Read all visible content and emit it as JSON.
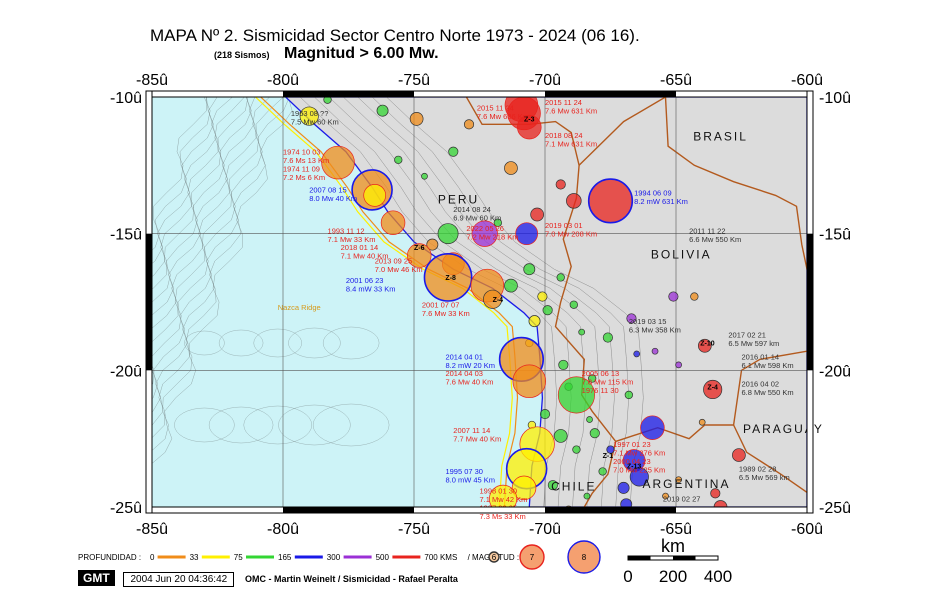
{
  "title": "MAPA Nº 2. Sismicidad Sector Centro Norte 1973 - 2024 (06 16).",
  "count_label": "(218 Sismos)",
  "magnitude_label": "Magnitud > 6.00 Mw.",
  "lon_ticks": [
    "-85û",
    "-80û",
    "-75û",
    "-70û",
    "-65û",
    "-60û"
  ],
  "lat_ticks": [
    "-10û",
    "-15û",
    "-20û",
    "-25û"
  ],
  "countries": [
    {
      "name": "BRASIL",
      "lon": -63.3,
      "lat": -11.6
    },
    {
      "name": "PERU",
      "lon": -73.3,
      "lat": -13.9
    },
    {
      "name": "BOLIVIA",
      "lon": -64.8,
      "lat": -15.9
    },
    {
      "name": "PARAGUAY",
      "lon": -60.9,
      "lat": -22.3
    },
    {
      "name": "CHILE",
      "lon": -68.9,
      "lat": -24.4
    },
    {
      "name": "ARGENTINA",
      "lon": -64.6,
      "lat": -24.3
    }
  ],
  "event_labels": [
    {
      "lines": [
        "2015 11 24",
        "7.6 Mw 636 Km"
      ],
      "lon": -72.6,
      "lat": -10.5,
      "color": "#e8231e"
    },
    {
      "lines": [
        "2015 11 24",
        "7.6 Mw 631 Km"
      ],
      "lon": -70.0,
      "lat": -10.3,
      "color": "#e8231e"
    },
    {
      "lines": [
        "2018 08 24",
        "7.1 Mw 631 Km"
      ],
      "lon": -70.0,
      "lat": -11.5,
      "color": "#e8231e"
    },
    {
      "lines": [
        "1963 08 ??",
        "7.5 Mw 60 Km"
      ],
      "lon": -79.7,
      "lat": -10.7,
      "color": "#333333"
    },
    {
      "lines": [
        "1974 10 03",
        "7.6 Ms 13 Km",
        "1974 11 09",
        "7.2 Ms 6 Km"
      ],
      "lon": -80.0,
      "lat": -12.1,
      "color": "#e8231e"
    },
    {
      "lines": [
        "2007 08 15",
        "8.0 Mw 40 Km"
      ],
      "lon": -79.0,
      "lat": -13.5,
      "color": "#1a1ae8"
    },
    {
      "lines": [
        "1994 06 09",
        "8.2 mW 631 Km"
      ],
      "lon": -66.6,
      "lat": -13.6,
      "color": "#1a1ae8"
    },
    {
      "lines": [
        "2014 08 24",
        "6.9 Mw 60 Km"
      ],
      "lon": -73.5,
      "lat": -14.2,
      "color": "#333333"
    },
    {
      "lines": [
        "2022 05 26",
        "7.2 Mw 218 Km"
      ],
      "lon": -73.0,
      "lat": -14.9,
      "color": "#e8231e"
    },
    {
      "lines": [
        "2019 03 01",
        "7.0 Mw 208 Km"
      ],
      "lon": -70.0,
      "lat": -14.8,
      "color": "#e8231e"
    },
    {
      "lines": [
        "2011 11 22",
        "6.6 Mw 550 Km"
      ],
      "lon": -64.5,
      "lat": -15.0,
      "color": "#333333"
    },
    {
      "lines": [
        "1993 11 12",
        "7.1 Mw 33 Km"
      ],
      "lon": -78.3,
      "lat": -15.0,
      "color": "#e8231e"
    },
    {
      "lines": [
        "2018 01 14",
        "7.1 Mw 40 Km"
      ],
      "lon": -77.8,
      "lat": -15.6,
      "color": "#e8231e"
    },
    {
      "lines": [
        "2013 09 25",
        "7.0 Mw 46 Km"
      ],
      "lon": -76.5,
      "lat": -16.1,
      "color": "#e8231e"
    },
    {
      "lines": [
        "2001 06 23",
        "8.4 mW 33 Km"
      ],
      "lon": -77.6,
      "lat": -16.8,
      "color": "#1a1ae8"
    },
    {
      "lines": [
        "2001 07 07",
        "7.6 Mw 33 Km"
      ],
      "lon": -74.7,
      "lat": -17.7,
      "color": "#e8231e"
    },
    {
      "lines": [
        "2019 03 15",
        "6.3 Mw 358 Km"
      ],
      "lon": -66.8,
      "lat": -18.3,
      "color": "#333333"
    },
    {
      "lines": [
        "2014 04 01",
        "8.2 mW 20 Km"
      ],
      "lon": -73.8,
      "lat": -19.6,
      "color": "#1a1ae8"
    },
    {
      "lines": [
        "2014 04 03",
        "7.6 Mw 40 Km"
      ],
      "lon": -73.8,
      "lat": -20.2,
      "color": "#e8231e"
    },
    {
      "lines": [
        "2005 06 13",
        "7.8 Mw 115 Km",
        "1976 11 30"
      ],
      "lon": -68.6,
      "lat": -20.2,
      "color": "#e8231e"
    },
    {
      "lines": [
        "2017 02 21",
        "6.5 Mw 597 km"
      ],
      "lon": -63.0,
      "lat": -18.8,
      "color": "#333333"
    },
    {
      "lines": [
        "2016 01 14",
        "6.1 Mw 598 Km"
      ],
      "lon": -62.5,
      "lat": -19.6,
      "color": "#333333"
    },
    {
      "lines": [
        "2016 04 02",
        "6.8 Mw 550 Km"
      ],
      "lon": -62.5,
      "lat": -20.6,
      "color": "#333333"
    },
    {
      "lines": [
        "2007 11 14",
        "7.7 Mw 40 Km"
      ],
      "lon": -73.5,
      "lat": -22.3,
      "color": "#e8231e"
    },
    {
      "lines": [
        "1995 07 30",
        "8.0 mW 45 Km"
      ],
      "lon": -73.8,
      "lat": -23.8,
      "color": "#1a1ae8"
    },
    {
      "lines": [
        "1998 01 30",
        "7.1 Mw 42 Km",
        "1987 03 05",
        "7.3 Ms 33 Km"
      ],
      "lon": -72.5,
      "lat": -24.5,
      "color": "#e8231e"
    },
    {
      "lines": [
        "1989 02 28",
        "6.5 Mw 569 km"
      ],
      "lon": -62.6,
      "lat": -23.7,
      "color": "#333333"
    },
    {
      "lines": [
        "1997 01 23",
        "7.1 Mw 276 Km",
        "2000 04 23",
        "7.0 Mw 225 Km"
      ],
      "lon": -67.4,
      "lat": -22.8,
      "color": "#e8231e"
    },
    {
      "lines": [
        "2019 02 27"
      ],
      "lon": -65.5,
      "lat": -24.8,
      "color": "#333333"
    },
    {
      "lines": [
        "Nazca Ridge"
      ],
      "lon": -80.2,
      "lat": -17.8,
      "color": "#d69a1a"
    }
  ],
  "events": [
    {
      "lon": -70.9,
      "lat": -10.3,
      "mag": 7.6,
      "color": "#e8231e"
    },
    {
      "lon": -70.8,
      "lat": -10.6,
      "mag": 7.6,
      "color": "#e8231e"
    },
    {
      "lon": -70.6,
      "lat": -11.1,
      "mag": 7.1,
      "color": "#e8231e"
    },
    {
      "lon": -77.9,
      "lat": -12.4,
      "mag": 7.6,
      "color": "#f08c1a"
    },
    {
      "lon": -76.6,
      "lat": -13.4,
      "mag": 8.0,
      "color": "#f08c1a"
    },
    {
      "lon": -76.5,
      "lat": -13.6,
      "mag": 7.0,
      "color": "#fff000"
    },
    {
      "lon": -67.5,
      "lat": -13.8,
      "mag": 8.2,
      "color": "#e8231e"
    },
    {
      "lon": -79.0,
      "lat": -10.7,
      "mag": 6.8,
      "color": "#fff000"
    },
    {
      "lon": -78.3,
      "lat": -10.1,
      "mag": 6.2,
      "color": "#33d633"
    },
    {
      "lon": -76.2,
      "lat": -10.5,
      "mag": 6.4,
      "color": "#33d633"
    },
    {
      "lon": -74.9,
      "lat": -10.8,
      "mag": 6.5,
      "color": "#f08c1a"
    },
    {
      "lon": -72.9,
      "lat": -11.0,
      "mag": 6.3,
      "color": "#f08c1a"
    },
    {
      "lon": -73.5,
      "lat": -12.0,
      "mag": 6.3,
      "color": "#33d633"
    },
    {
      "lon": -75.6,
      "lat": -12.3,
      "mag": 6.2,
      "color": "#33d633"
    },
    {
      "lon": -74.6,
      "lat": -12.9,
      "mag": 6.1,
      "color": "#33d633"
    },
    {
      "lon": -71.3,
      "lat": -12.6,
      "mag": 6.5,
      "color": "#f08c1a"
    },
    {
      "lon": -69.4,
      "lat": -13.2,
      "mag": 6.3,
      "color": "#e8231e"
    },
    {
      "lon": -68.9,
      "lat": -13.8,
      "mag": 6.6,
      "color": "#e8231e"
    },
    {
      "lon": -70.3,
      "lat": -14.3,
      "mag": 6.5,
      "color": "#e8231e"
    },
    {
      "lon": -71.8,
      "lat": -14.6,
      "mag": 6.2,
      "color": "#33d633"
    },
    {
      "lon": -73.7,
      "lat": -15.0,
      "mag": 6.9,
      "color": "#33d633"
    },
    {
      "lon": -72.3,
      "lat": -15.0,
      "mag": 7.2,
      "color": "#9b30d6"
    },
    {
      "lon": -70.7,
      "lat": -15.0,
      "mag": 7.0,
      "color": "#1a1ae8"
    },
    {
      "lon": -75.8,
      "lat": -14.6,
      "mag": 7.1,
      "color": "#f08c1a"
    },
    {
      "lon": -74.3,
      "lat": -15.4,
      "mag": 6.4,
      "color": "#f08c1a"
    },
    {
      "lon": -74.8,
      "lat": -15.8,
      "mag": 7.1,
      "color": "#f08c1a"
    },
    {
      "lon": -73.5,
      "lat": -16.1,
      "mag": 7.0,
      "color": "#f08c1a"
    },
    {
      "lon": -73.7,
      "lat": -16.6,
      "mag": 8.4,
      "color": "#f08c1a"
    },
    {
      "lon": -72.2,
      "lat": -16.9,
      "mag": 7.6,
      "color": "#f08c1a"
    },
    {
      "lon": -72.0,
      "lat": -17.4,
      "mag": 6.8,
      "color": "#f08c1a"
    },
    {
      "lon": -71.3,
      "lat": -16.9,
      "mag": 6.5,
      "color": "#33d633"
    },
    {
      "lon": -70.6,
      "lat": -16.3,
      "mag": 6.4,
      "color": "#33d633"
    },
    {
      "lon": -70.1,
      "lat": -17.3,
      "mag": 6.3,
      "color": "#fff000"
    },
    {
      "lon": -69.4,
      "lat": -16.6,
      "mag": 6.2,
      "color": "#33d633"
    },
    {
      "lon": -69.9,
      "lat": -17.8,
      "mag": 6.3,
      "color": "#33d633"
    },
    {
      "lon": -68.9,
      "lat": -17.6,
      "mag": 6.2,
      "color": "#33d633"
    },
    {
      "lon": -64.3,
      "lat": -17.3,
      "mag": 6.2,
      "color": "#f08c1a"
    },
    {
      "lon": -65.1,
      "lat": -17.3,
      "mag": 6.3,
      "color": "#9b30d6"
    },
    {
      "lon": -66.7,
      "lat": -18.1,
      "mag": 6.3,
      "color": "#9b30d6"
    },
    {
      "lon": -66.5,
      "lat": -19.4,
      "mag": 6.0,
      "color": "#1a1ae8"
    },
    {
      "lon": -65.8,
      "lat": -19.3,
      "mag": 6.1,
      "color": "#9b30d6"
    },
    {
      "lon": -64.9,
      "lat": -19.8,
      "mag": 6.1,
      "color": "#9b30d6"
    },
    {
      "lon": -63.9,
      "lat": -19.1,
      "mag": 6.5,
      "color": "#e8231e"
    },
    {
      "lon": -63.6,
      "lat": -20.7,
      "mag": 6.8,
      "color": "#e8231e"
    },
    {
      "lon": -70.4,
      "lat": -18.2,
      "mag": 6.4,
      "color": "#fff000"
    },
    {
      "lon": -70.6,
      "lat": -19.0,
      "mag": 6.2,
      "color": "#fff000"
    },
    {
      "lon": -70.9,
      "lat": -19.6,
      "mag": 8.2,
      "color": "#f08c1a"
    },
    {
      "lon": -70.6,
      "lat": -20.4,
      "mag": 7.6,
      "color": "#f08c1a"
    },
    {
      "lon": -69.3,
      "lat": -19.8,
      "mag": 6.3,
      "color": "#33d633"
    },
    {
      "lon": -69.1,
      "lat": -20.6,
      "mag": 6.2,
      "color": "#33d633"
    },
    {
      "lon": -68.8,
      "lat": -20.9,
      "mag": 7.8,
      "color": "#33d633"
    },
    {
      "lon": -67.6,
      "lat": -18.8,
      "mag": 6.3,
      "color": "#33d633"
    },
    {
      "lon": -68.6,
      "lat": -18.6,
      "mag": 6.1,
      "color": "#33d633"
    },
    {
      "lon": -68.2,
      "lat": -20.3,
      "mag": 6.2,
      "color": "#33d633"
    },
    {
      "lon": -70.0,
      "lat": -21.6,
      "mag": 6.3,
      "color": "#33d633"
    },
    {
      "lon": -70.5,
      "lat": -22.0,
      "mag": 6.2,
      "color": "#fff000"
    },
    {
      "lon": -70.3,
      "lat": -22.7,
      "mag": 7.7,
      "color": "#fff000"
    },
    {
      "lon": -69.4,
      "lat": -22.4,
      "mag": 6.5,
      "color": "#33d633"
    },
    {
      "lon": -68.8,
      "lat": -22.9,
      "mag": 6.2,
      "color": "#33d633"
    },
    {
      "lon": -68.1,
      "lat": -22.3,
      "mag": 6.3,
      "color": "#33d633"
    },
    {
      "lon": -67.5,
      "lat": -22.9,
      "mag": 6.2,
      "color": "#1a1ae8"
    },
    {
      "lon": -66.6,
      "lat": -23.3,
      "mag": 7.0,
      "color": "#1a1ae8"
    },
    {
      "lon": -66.4,
      "lat": -23.9,
      "mag": 6.8,
      "color": "#1a1ae8"
    },
    {
      "lon": -67.0,
      "lat": -24.3,
      "mag": 6.4,
      "color": "#1a1ae8"
    },
    {
      "lon": -66.9,
      "lat": -24.9,
      "mag": 6.4,
      "color": "#1a1ae8"
    },
    {
      "lon": -65.9,
      "lat": -22.1,
      "mag": 7.1,
      "color": "#1a1ae8"
    },
    {
      "lon": -66.8,
      "lat": -20.9,
      "mag": 6.2,
      "color": "#33d633"
    },
    {
      "lon": -70.7,
      "lat": -23.6,
      "mag": 8.0,
      "color": "#fff000"
    },
    {
      "lon": -70.8,
      "lat": -24.3,
      "mag": 7.1,
      "color": "#fff000"
    },
    {
      "lon": -71.6,
      "lat": -24.7,
      "mag": 7.3,
      "color": "#fff000"
    },
    {
      "lon": -69.7,
      "lat": -24.2,
      "mag": 6.3,
      "color": "#33d633"
    },
    {
      "lon": -68.4,
      "lat": -24.6,
      "mag": 6.1,
      "color": "#33d633"
    },
    {
      "lon": -69.1,
      "lat": -25.1,
      "mag": 6.2,
      "color": "#f08c1a"
    },
    {
      "lon": -64.9,
      "lat": -24.0,
      "mag": 6.1,
      "color": "#f08c1a"
    },
    {
      "lon": -63.3,
      "lat": -25.0,
      "mag": 6.5,
      "color": "#e8231e"
    },
    {
      "lon": -63.5,
      "lat": -24.5,
      "mag": 6.3,
      "color": "#e8231e"
    },
    {
      "lon": -62.6,
      "lat": -23.1,
      "mag": 6.5,
      "color": "#e8231e"
    },
    {
      "lon": -64.0,
      "lat": -21.9,
      "mag": 6.1,
      "color": "#f08c1a"
    },
    {
      "lon": -65.4,
      "lat": -24.6,
      "mag": 6.1,
      "color": "#f08c1a"
    },
    {
      "lon": -67.8,
      "lat": -23.7,
      "mag": 6.2,
      "color": "#33d633"
    },
    {
      "lon": -68.3,
      "lat": -21.8,
      "mag": 6.1,
      "color": "#33d633"
    }
  ],
  "zone_labels": [
    {
      "text": "Z-3",
      "lon": -70.6,
      "lat": -10.9
    },
    {
      "text": "Z-6",
      "lon": -74.8,
      "lat": -15.6
    },
    {
      "text": "Z-8",
      "lon": -73.6,
      "lat": -16.7
    },
    {
      "text": "Z-4",
      "lon": -71.8,
      "lat": -17.5
    },
    {
      "text": "Z-10",
      "lon": -63.8,
      "lat": -19.1
    },
    {
      "text": "Z-4",
      "lon": -63.6,
      "lat": -20.7
    },
    {
      "text": "Z-13",
      "lon": -66.6,
      "lat": -23.6
    },
    {
      "text": "Z-1",
      "lon": -67.6,
      "lat": -23.2
    }
  ],
  "legend": {
    "depth_title": "PROFUNDIDAD :",
    "depths": [
      {
        "label": "0",
        "color": "#f08c1a"
      },
      {
        "label": "33",
        "color": "#fff000"
      },
      {
        "label": "75",
        "color": "#33d633"
      },
      {
        "label": "165",
        "color": "#1a1ae8"
      },
      {
        "label": "300",
        "color": "#9b30d6"
      },
      {
        "label": "500",
        "color": "#e8231e"
      },
      {
        "label": "700 KMS",
        "color": ""
      }
    ],
    "magnitude_title": "/ MAGNITUD :",
    "magnitudes": [
      "6",
      "7",
      "8"
    ]
  },
  "scalebar": {
    "unit": "km",
    "ticks": [
      "0",
      "200",
      "400"
    ]
  },
  "gmt_label": "GMT",
  "timestamp": "2004 Jun 20 04:36:42",
  "credit": "OMC - Martin Weinelt / Sismicidad - Rafael Peralta"
}
